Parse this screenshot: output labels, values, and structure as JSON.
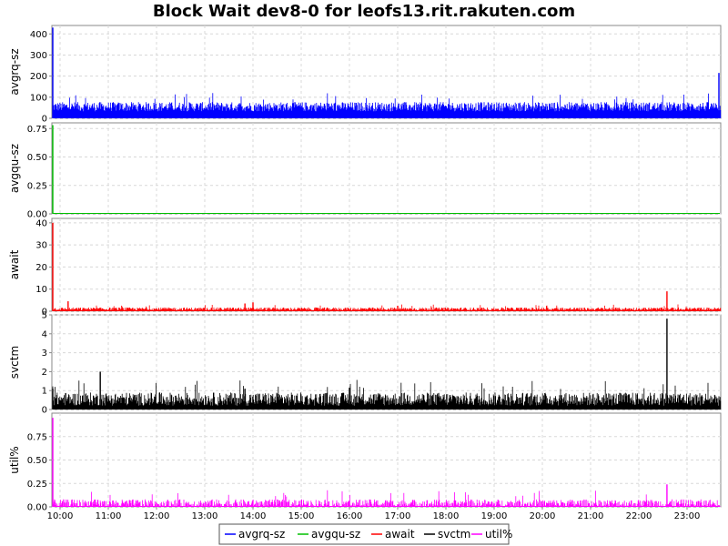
{
  "chart_data": {
    "type": "line",
    "title": "Block Wait dev8-0 for leofs13.rit.rakuten.com",
    "x_tick_labels": [
      "10:00",
      "11:00",
      "12:00",
      "13:00",
      "14:00",
      "15:00",
      "16:00",
      "17:00",
      "18:00",
      "19:00",
      "20:00",
      "21:00",
      "22:00",
      "23:00"
    ],
    "grid": true,
    "legend_position": "bottom",
    "legend": [
      "avgrq-sz",
      "avgqu-sz",
      "await",
      "svctm",
      "util%"
    ],
    "panels": [
      {
        "ylabel": "avgrq-sz",
        "series_name": "avgrq-sz",
        "color": "#0000ff",
        "ylim": [
          0,
          440
        ],
        "yticks": [
          0,
          100,
          200,
          300,
          400
        ],
        "ytick_labels": [
          "0",
          "100",
          "200",
          "300",
          "400"
        ],
        "baseline": 55,
        "noise": 22,
        "spikes": [
          {
            "time": "09:50",
            "value": 430
          },
          {
            "time": "23:50",
            "value": 215
          }
        ]
      },
      {
        "ylabel": "avgqu-sz",
        "series_name": "avgqu-sz",
        "color": "#00c000",
        "ylim": [
          0,
          0.8
        ],
        "yticks": [
          0,
          0.25,
          0.5,
          0.75
        ],
        "ytick_labels": [
          "0.00",
          "0.25",
          "0.50",
          "0.75"
        ],
        "baseline": 0.0,
        "noise": 0.0,
        "spikes": [
          {
            "time": "09:50",
            "value": 0.78
          }
        ]
      },
      {
        "ylabel": "await",
        "series_name": "await",
        "color": "#ff0000",
        "ylim": [
          0,
          42
        ],
        "yticks": [
          0,
          10,
          20,
          30,
          40
        ],
        "ytick_labels": [
          "0",
          "10",
          "20",
          "30",
          "40"
        ],
        "baseline": 1.0,
        "noise": 0.7,
        "spikes": [
          {
            "time": "09:50",
            "value": 40
          },
          {
            "time": "10:10",
            "value": 4.5
          },
          {
            "time": "13:50",
            "value": 3.5
          },
          {
            "time": "14:00",
            "value": 4.0
          },
          {
            "time": "17:00",
            "value": 2.5
          },
          {
            "time": "22:35",
            "value": 9
          }
        ]
      },
      {
        "ylabel": "svctm",
        "series_name": "svctm",
        "color": "#000000",
        "ylim": [
          0,
          5
        ],
        "yticks": [
          0,
          1,
          2,
          3,
          4,
          5
        ],
        "ytick_labels": [
          "0",
          "1",
          "2",
          "3",
          "4",
          "5"
        ],
        "baseline": 0.55,
        "noise": 0.35,
        "spikes": [
          {
            "time": "09:50",
            "value": 1.1
          },
          {
            "time": "10:50",
            "value": 2.0
          },
          {
            "time": "13:50",
            "value": 1.1
          },
          {
            "time": "16:00",
            "value": 1.15
          },
          {
            "time": "22:35",
            "value": 4.8
          }
        ]
      },
      {
        "ylabel": "util%",
        "series_name": "util%",
        "color": "#ff00ff",
        "ylim": [
          0,
          1.0
        ],
        "yticks": [
          0,
          0.25,
          0.5,
          0.75
        ],
        "ytick_labels": [
          "0.00",
          "0.25",
          "0.50",
          "0.75"
        ],
        "baseline": 0.03,
        "noise": 0.05,
        "spikes": [
          {
            "time": "09:50",
            "value": 0.95
          },
          {
            "time": "22:35",
            "value": 0.24
          }
        ]
      }
    ]
  }
}
